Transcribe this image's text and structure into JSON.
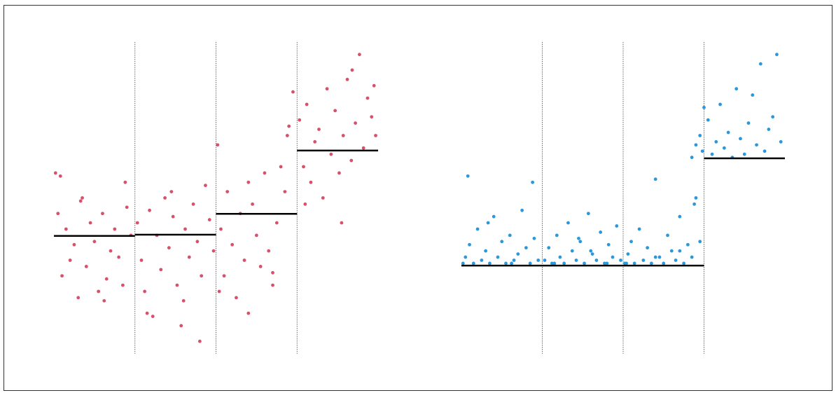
{
  "chart_data": [
    {
      "type": "scatter",
      "color": "#d9506a",
      "xlim": [
        0,
        4
      ],
      "ylim": [
        0,
        100
      ],
      "vlines": [
        1,
        2,
        3
      ],
      "levels": [
        37.8,
        38.2,
        44.9,
        65.2
      ],
      "x": [
        0.02,
        0.05,
        0.1,
        0.15,
        0.2,
        0.25,
        0.3,
        0.35,
        0.4,
        0.45,
        0.5,
        0.55,
        0.6,
        0.65,
        0.7,
        0.75,
        0.8,
        0.85,
        0.9,
        0.95,
        0.08,
        0.33,
        0.62,
        0.88,
        1.03,
        1.08,
        1.12,
        1.18,
        1.22,
        1.27,
        1.32,
        1.37,
        1.42,
        1.47,
        1.52,
        1.57,
        1.62,
        1.67,
        1.72,
        1.77,
        1.82,
        1.87,
        1.92,
        1.97,
        1.15,
        1.6,
        1.45,
        1.8,
        2.02,
        2.06,
        2.1,
        2.14,
        2.2,
        2.25,
        2.3,
        2.35,
        2.4,
        2.45,
        2.5,
        2.55,
        2.6,
        2.65,
        2.7,
        2.75,
        2.8,
        2.85,
        2.9,
        2.95,
        2.04,
        2.4,
        2.7,
        2.88,
        3.03,
        3.08,
        3.12,
        3.17,
        3.22,
        3.27,
        3.32,
        3.37,
        3.42,
        3.47,
        3.52,
        3.57,
        3.62,
        3.67,
        3.72,
        3.77,
        3.82,
        3.87,
        3.92,
        3.97,
        3.1,
        3.55,
        3.68,
        3.95
      ],
      "values": [
        58,
        45,
        25,
        40,
        30,
        35,
        18,
        50,
        28,
        42,
        36,
        20,
        45,
        24,
        33,
        40,
        31,
        22,
        47,
        38,
        57,
        49,
        17,
        55,
        42,
        30,
        20,
        46,
        12,
        38,
        27,
        50,
        34,
        44,
        22,
        9,
        40,
        31,
        48,
        36,
        25,
        54,
        43,
        33,
        13,
        17,
        52,
        4,
        67,
        40,
        25,
        52,
        35,
        18,
        45,
        30,
        13,
        48,
        38,
        28,
        58,
        33,
        22,
        42,
        60,
        52,
        73,
        84,
        20,
        55,
        26,
        70,
        75,
        60,
        80,
        55,
        68,
        72,
        50,
        85,
        64,
        78,
        58,
        70,
        88,
        62,
        74,
        96,
        66,
        82,
        76,
        70,
        48,
        42,
        91,
        86
      ]
    },
    {
      "type": "scatter",
      "color": "#2a98db",
      "xlim": [
        0,
        4
      ],
      "ylim": [
        0,
        100
      ],
      "vlines": [
        1,
        2,
        3
      ],
      "levels": [
        28.3,
        28.3,
        28.3,
        62.7
      ],
      "x": [
        0.02,
        0.05,
        0.1,
        0.15,
        0.2,
        0.25,
        0.3,
        0.35,
        0.4,
        0.45,
        0.5,
        0.55,
        0.6,
        0.65,
        0.7,
        0.75,
        0.8,
        0.85,
        0.9,
        0.95,
        0.08,
        0.33,
        0.62,
        0.88,
        1.03,
        1.08,
        1.12,
        1.18,
        1.22,
        1.27,
        1.32,
        1.37,
        1.42,
        1.47,
        1.52,
        1.57,
        1.62,
        1.67,
        1.72,
        1.77,
        1.82,
        1.87,
        1.92,
        1.97,
        1.15,
        1.6,
        1.45,
        1.8,
        2.02,
        2.06,
        2.1,
        2.14,
        2.2,
        2.25,
        2.3,
        2.35,
        2.4,
        2.45,
        2.5,
        2.55,
        2.6,
        2.65,
        2.7,
        2.75,
        2.8,
        2.85,
        2.9,
        2.95,
        2.04,
        2.4,
        2.7,
        2.88,
        2.85,
        2.9,
        2.95,
        2.98,
        3.05,
        3.1,
        3.15,
        3.2,
        3.25,
        3.3,
        3.35,
        3.4,
        3.45,
        3.5,
        3.55,
        3.6,
        3.65,
        3.7,
        3.75,
        3.8,
        3.85,
        3.9,
        3.95,
        3.0
      ],
      "values": [
        29,
        31,
        35,
        29,
        40,
        30,
        33,
        29,
        44,
        31,
        36,
        29,
        38,
        30,
        32,
        46,
        34,
        29,
        37,
        30,
        57,
        42,
        29,
        55,
        30,
        34,
        29,
        38,
        31,
        29,
        42,
        33,
        30,
        36,
        29,
        45,
        32,
        30,
        39,
        29,
        35,
        31,
        41,
        30,
        29,
        33,
        37,
        29,
        29,
        32,
        36,
        29,
        40,
        30,
        34,
        29,
        56,
        31,
        29,
        38,
        33,
        30,
        44,
        29,
        35,
        31,
        50,
        36,
        29,
        31,
        33,
        48,
        63,
        67,
        70,
        65,
        75,
        64,
        68,
        80,
        66,
        71,
        63,
        85,
        69,
        64,
        74,
        83,
        67,
        93,
        65,
        72,
        76,
        96,
        68,
        79
      ]
    }
  ]
}
